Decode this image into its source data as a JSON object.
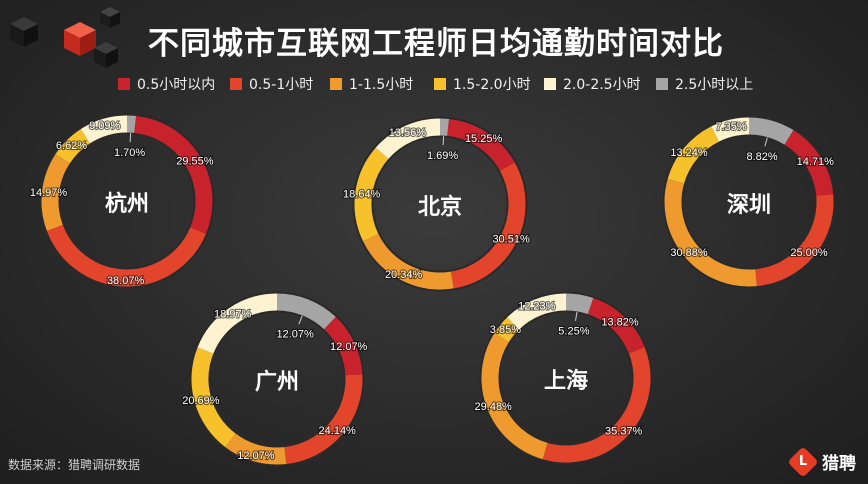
{
  "title": "不同城市互联网工程师日均通勤时间对比",
  "source": "数据来源：猎聘调研数据",
  "brand": {
    "mark": "L",
    "name": "猎聘"
  },
  "colors": {
    "background": "#262626",
    "track": "#2a2a2a"
  },
  "chart_data": {
    "type": "pie",
    "variant": "donut",
    "title": "不同城市互联网工程师日均通勤时间对比",
    "legend_position": "top",
    "categories": [
      "0.5小时以内",
      "0.5-1小时",
      "1-1.5小时",
      "1.5-2.0小时",
      "2.0-2.5小时",
      "2.5小时以上"
    ],
    "category_colors": [
      "#c8222c",
      "#e2452c",
      "#ef9a2e",
      "#f6c12b",
      "#fdf3d0",
      "#a5a5a5"
    ],
    "series": [
      {
        "name": "杭州",
        "values": [
          29.55,
          38.07,
          14.97,
          6.62,
          9.09,
          1.7
        ]
      },
      {
        "name": "北京",
        "values": [
          15.25,
          30.51,
          20.34,
          18.64,
          13.56,
          1.69
        ]
      },
      {
        "name": "深圳",
        "values": [
          14.71,
          25.0,
          30.88,
          13.24,
          7.35,
          8.82
        ]
      },
      {
        "name": "广州",
        "values": [
          12.07,
          24.14,
          12.07,
          20.69,
          18.97,
          12.07
        ]
      },
      {
        "name": "上海",
        "values": [
          13.82,
          35.37,
          29.48,
          3.85,
          12.23,
          5.25
        ]
      }
    ]
  }
}
